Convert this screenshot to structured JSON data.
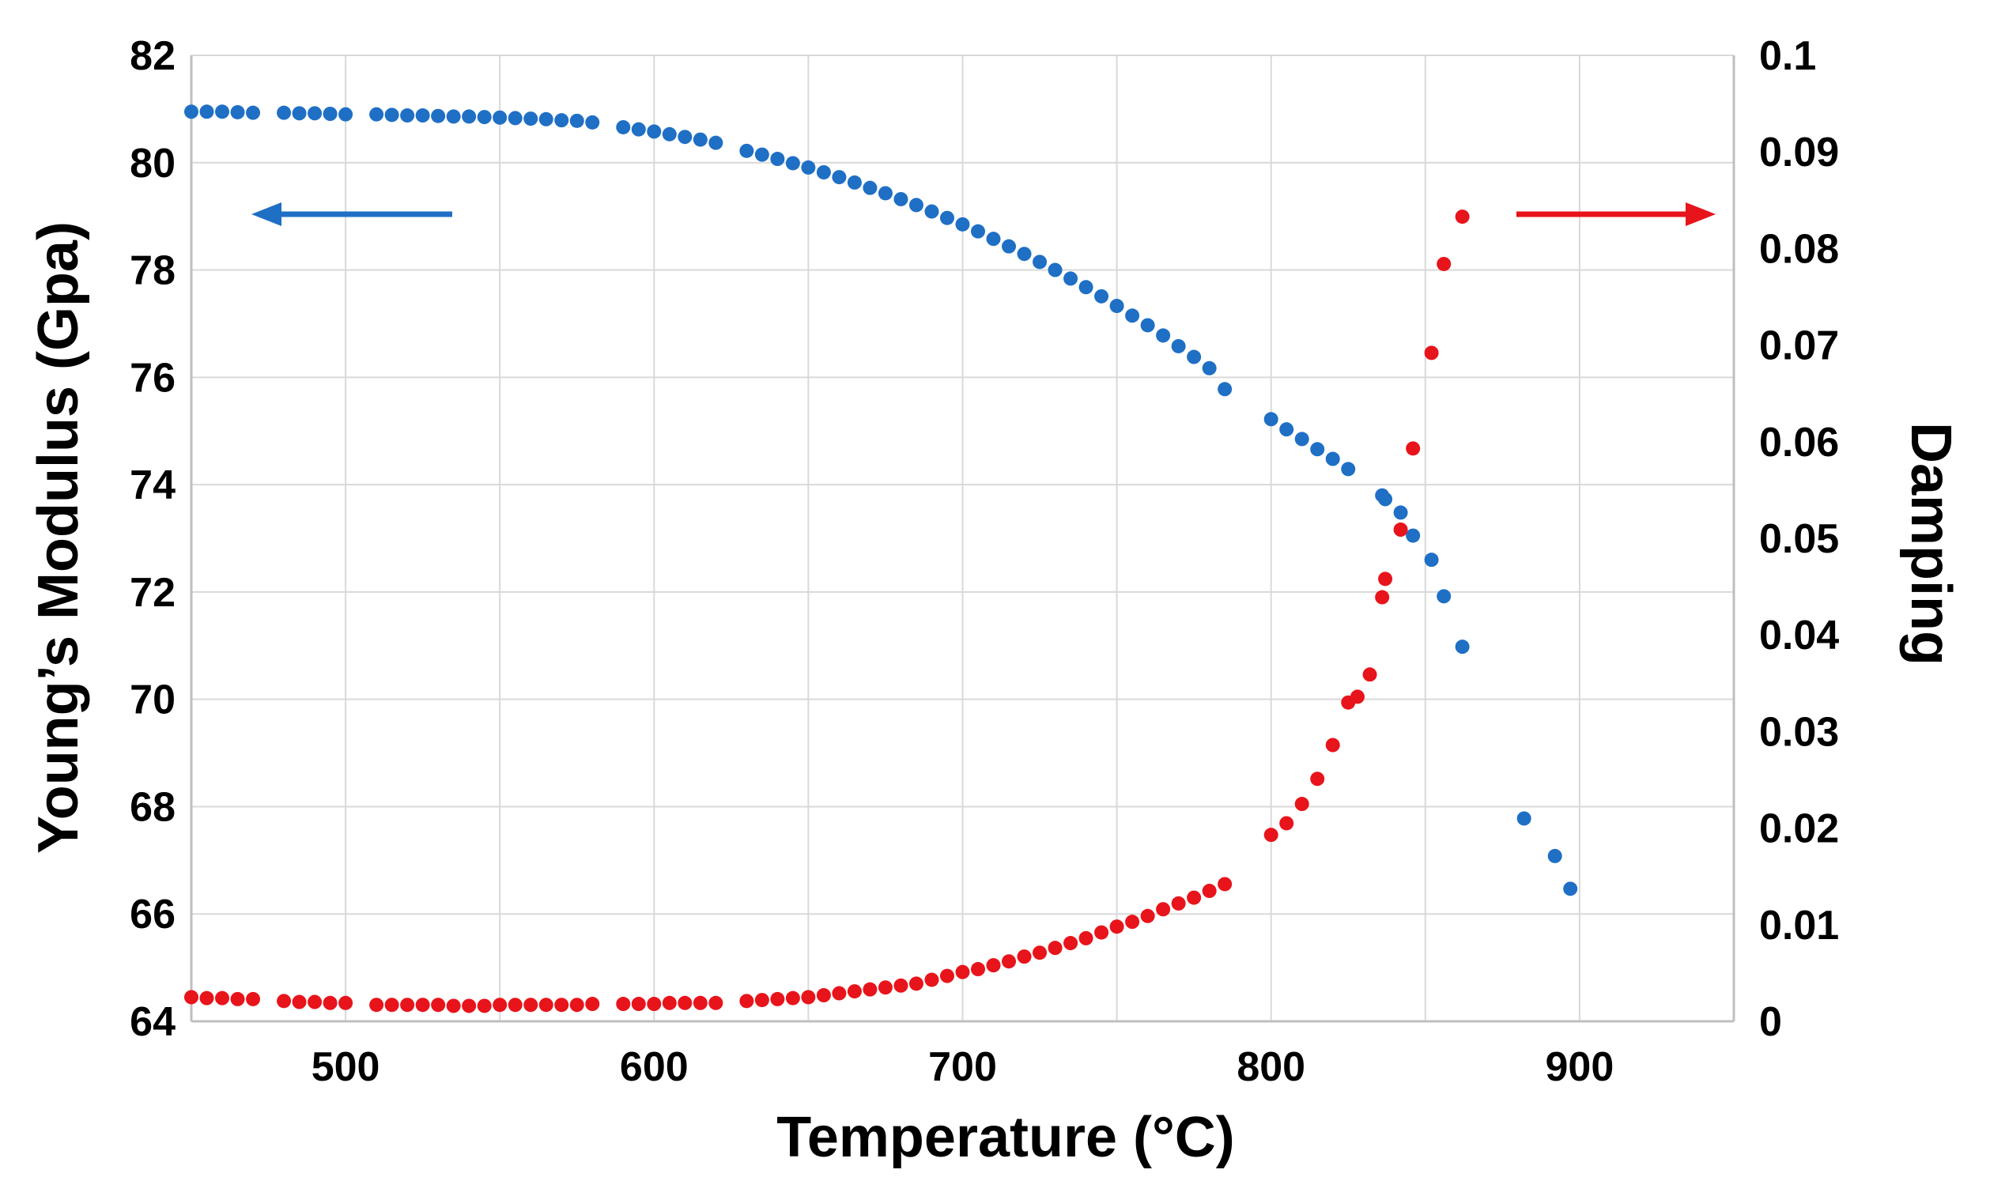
{
  "chart_data": {
    "type": "scatter",
    "xlabel": "Temperature (°C)",
    "ylabel": "Young’s Modulus (Gpa)",
    "y2label": "Damping",
    "xlim": [
      450,
      950
    ],
    "ylim": [
      64,
      82
    ],
    "y2lim": [
      0,
      0.1
    ],
    "grid": true,
    "xticks": [
      "500",
      "600",
      "700",
      "800",
      "900"
    ],
    "xtick_values": [
      500,
      600,
      700,
      800,
      900
    ],
    "yticks": [
      "64",
      "66",
      "68",
      "70",
      "72",
      "74",
      "76",
      "78",
      "80",
      "82"
    ],
    "ytick_values": [
      64,
      66,
      68,
      70,
      72,
      74,
      76,
      78,
      80,
      82
    ],
    "y2ticks": [
      "0",
      "0.01",
      "0.02",
      "0.03",
      "0.04",
      "0.05",
      "0.06",
      "0.07",
      "0.08",
      "0.09",
      "0.1"
    ],
    "y2tick_values": [
      0,
      0.01,
      0.02,
      0.03,
      0.04,
      0.05,
      0.06,
      0.07,
      0.08,
      0.09,
      0.1
    ],
    "annotations": [
      {
        "type": "arrow",
        "direction": "left",
        "meaning": "Young's Modulus uses left axis",
        "color": "#1F6FC5"
      },
      {
        "type": "arrow",
        "direction": "right",
        "meaning": "Damping uses right axis",
        "color": "#E8141B"
      }
    ],
    "series": [
      {
        "name": "Young's Modulus",
        "axis": "left",
        "color": "#1F6FC5",
        "points": [
          [
            450,
            80.95
          ],
          [
            455,
            80.95
          ],
          [
            460,
            80.95
          ],
          [
            465,
            80.94
          ],
          [
            470,
            80.93
          ],
          [
            480,
            80.93
          ],
          [
            485,
            80.92
          ],
          [
            490,
            80.92
          ],
          [
            495,
            80.91
          ],
          [
            500,
            80.9
          ],
          [
            510,
            80.9
          ],
          [
            515,
            80.89
          ],
          [
            520,
            80.88
          ],
          [
            525,
            80.88
          ],
          [
            530,
            80.87
          ],
          [
            535,
            80.86
          ],
          [
            540,
            80.86
          ],
          [
            545,
            80.85
          ],
          [
            550,
            80.84
          ],
          [
            555,
            80.83
          ],
          [
            560,
            80.82
          ],
          [
            565,
            80.81
          ],
          [
            570,
            80.79
          ],
          [
            575,
            80.78
          ],
          [
            580,
            80.75
          ],
          [
            590,
            80.66
          ],
          [
            595,
            80.62
          ],
          [
            600,
            80.58
          ],
          [
            605,
            80.53
          ],
          [
            610,
            80.48
          ],
          [
            615,
            80.43
          ],
          [
            620,
            80.37
          ],
          [
            630,
            80.22
          ],
          [
            635,
            80.15
          ],
          [
            640,
            80.07
          ],
          [
            645,
            79.99
          ],
          [
            650,
            79.91
          ],
          [
            655,
            79.82
          ],
          [
            660,
            79.73
          ],
          [
            665,
            79.63
          ],
          [
            670,
            79.53
          ],
          [
            675,
            79.43
          ],
          [
            680,
            79.32
          ],
          [
            685,
            79.21
          ],
          [
            690,
            79.09
          ],
          [
            695,
            78.97
          ],
          [
            700,
            78.85
          ],
          [
            705,
            78.72
          ],
          [
            710,
            78.58
          ],
          [
            715,
            78.44
          ],
          [
            720,
            78.3
          ],
          [
            725,
            78.15
          ],
          [
            730,
            78.0
          ],
          [
            735,
            77.84
          ],
          [
            740,
            77.68
          ],
          [
            745,
            77.51
          ],
          [
            750,
            77.33
          ],
          [
            755,
            77.15
          ],
          [
            760,
            76.97
          ],
          [
            765,
            76.78
          ],
          [
            770,
            76.58
          ],
          [
            775,
            76.38
          ],
          [
            780,
            76.17
          ],
          [
            785,
            75.78
          ],
          [
            800,
            75.22
          ],
          [
            805,
            75.03
          ],
          [
            810,
            74.85
          ],
          [
            815,
            74.66
          ],
          [
            820,
            74.48
          ],
          [
            825,
            74.29
          ],
          [
            836,
            73.8
          ],
          [
            837,
            73.73
          ],
          [
            842,
            73.48
          ],
          [
            846,
            73.05
          ],
          [
            852,
            72.6
          ],
          [
            856,
            71.92
          ],
          [
            862,
            70.98
          ],
          [
            882,
            67.78
          ],
          [
            892,
            67.08
          ],
          [
            897,
            66.47
          ]
        ]
      },
      {
        "name": "Damping",
        "axis": "right",
        "color": "#E8141B",
        "points": [
          [
            450,
            0.0025
          ],
          [
            455,
            0.0024
          ],
          [
            460,
            0.0024
          ],
          [
            465,
            0.0023
          ],
          [
            470,
            0.0023
          ],
          [
            480,
            0.0021
          ],
          [
            485,
            0.002
          ],
          [
            490,
            0.002
          ],
          [
            495,
            0.0019
          ],
          [
            500,
            0.0019
          ],
          [
            510,
            0.0017
          ],
          [
            515,
            0.0017
          ],
          [
            520,
            0.0017
          ],
          [
            525,
            0.0017
          ],
          [
            530,
            0.0017
          ],
          [
            535,
            0.0016
          ],
          [
            540,
            0.0016
          ],
          [
            545,
            0.0016
          ],
          [
            550,
            0.0017
          ],
          [
            555,
            0.0017
          ],
          [
            560,
            0.0017
          ],
          [
            565,
            0.0017
          ],
          [
            570,
            0.0017
          ],
          [
            575,
            0.0017
          ],
          [
            580,
            0.0018
          ],
          [
            590,
            0.0018
          ],
          [
            595,
            0.0018
          ],
          [
            600,
            0.0018
          ],
          [
            605,
            0.0019
          ],
          [
            610,
            0.0019
          ],
          [
            615,
            0.0019
          ],
          [
            620,
            0.0019
          ],
          [
            630,
            0.0021
          ],
          [
            635,
            0.0022
          ],
          [
            640,
            0.0023
          ],
          [
            645,
            0.0024
          ],
          [
            650,
            0.0025
          ],
          [
            655,
            0.0027
          ],
          [
            660,
            0.0029
          ],
          [
            665,
            0.0031
          ],
          [
            670,
            0.0033
          ],
          [
            675,
            0.0035
          ],
          [
            680,
            0.0037
          ],
          [
            685,
            0.0039
          ],
          [
            690,
            0.0043
          ],
          [
            695,
            0.0047
          ],
          [
            700,
            0.0051
          ],
          [
            705,
            0.0054
          ],
          [
            710,
            0.0058
          ],
          [
            715,
            0.0062
          ],
          [
            720,
            0.0067
          ],
          [
            725,
            0.0071
          ],
          [
            730,
            0.0076
          ],
          [
            735,
            0.0081
          ],
          [
            740,
            0.0086
          ],
          [
            745,
            0.0092
          ],
          [
            750,
            0.0098
          ],
          [
            755,
            0.0103
          ],
          [
            760,
            0.0109
          ],
          [
            765,
            0.0116
          ],
          [
            770,
            0.0122
          ],
          [
            775,
            0.0128
          ],
          [
            780,
            0.0135
          ],
          [
            785,
            0.0142
          ],
          [
            800,
            0.0193
          ],
          [
            805,
            0.0205
          ],
          [
            810,
            0.0225
          ],
          [
            815,
            0.0251
          ],
          [
            820,
            0.0286
          ],
          [
            825,
            0.033
          ],
          [
            828,
            0.0336
          ],
          [
            832,
            0.0359
          ],
          [
            836,
            0.0439
          ],
          [
            837,
            0.0458
          ],
          [
            842,
            0.0509
          ],
          [
            846,
            0.0593
          ],
          [
            852,
            0.0692
          ],
          [
            856,
            0.0784
          ],
          [
            862,
            0.0833
          ]
        ]
      }
    ]
  }
}
